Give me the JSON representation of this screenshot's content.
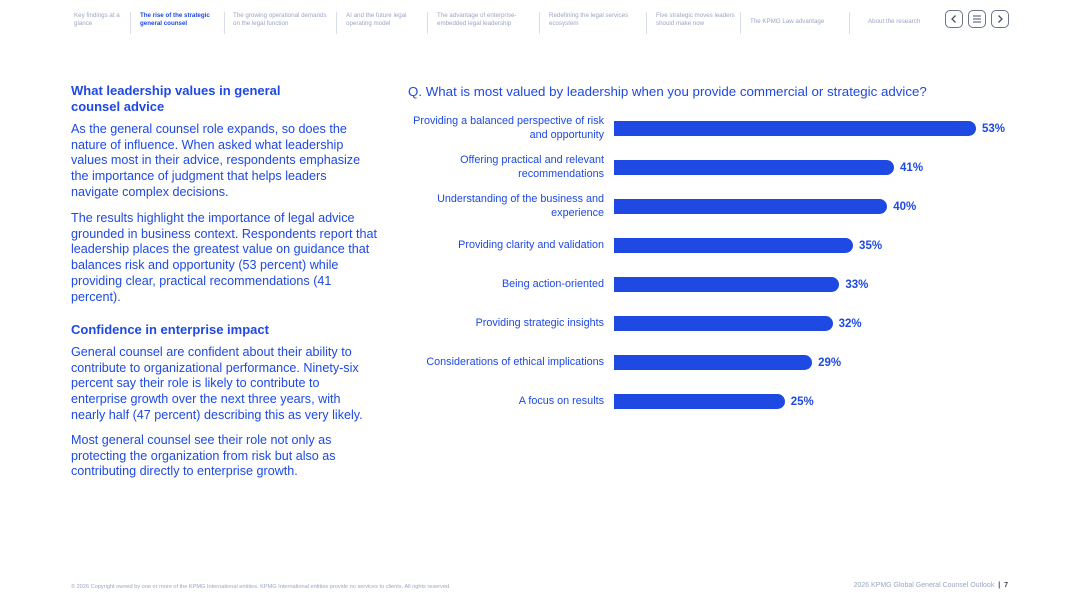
{
  "nav": {
    "items": [
      "Key findings at a glance",
      "The rise of the strategic general counsel",
      "The growing operational demands on the legal function",
      "AI and the future legal operating model",
      "The advantage of enterprise-embedded legal leadership",
      "Redefining the legal services ecosystem",
      "Five strategic moves leaders should make now",
      "The KPMG Law advantage",
      "About the research"
    ],
    "active_index": 1,
    "prev_icon": "chevron-left-icon",
    "menu_icon": "menu-icon",
    "next_icon": "chevron-right-icon"
  },
  "left": {
    "heading1": "What leadership values in general counsel advice",
    "para1": "As the general counsel role expands, so does the nature of influence. When asked what leadership values most in their advice, respondents emphasize the importance of judgment that helps leaders navigate complex decisions.",
    "para2": "The results highlight the importance of legal advice grounded in business context. Respondents report that leadership places the greatest value on guidance that balances risk and opportunity (53 percent) while providing clear, practical recommendations (41 percent).",
    "heading2": "Confidence in enterprise impact",
    "para3": "General counsel are confident about their ability to contribute to organizational performance. Ninety-six percent say their role is likely to contribute to enterprise growth over the next three years, with nearly half (47 percent) describing this as very likely.",
    "para4": "Most general counsel see their role not only as protecting the organization from risk but also as contributing directly to enterprise growth."
  },
  "chart_data": {
    "type": "bar",
    "orientation": "horizontal",
    "title": "Q. What is most valued by leadership when you provide commercial or strategic advice?",
    "categories": [
      "Providing a balanced perspective of risk and opportunity",
      "Offering practical and relevant recommendations",
      "Understanding of the business and experience",
      "Providing clarity and validation",
      "Being action-oriented",
      "Providing strategic insights",
      "Considerations of ethical implications",
      "A focus on results"
    ],
    "values": [
      53,
      41,
      40,
      35,
      33,
      32,
      29,
      25
    ],
    "value_labels": [
      "53%",
      "41%",
      "40%",
      "35%",
      "33%",
      "32%",
      "29%",
      "25%"
    ],
    "unit": "%",
    "bar_color": "#1e49e2",
    "grid": false,
    "legend": "none"
  },
  "footer": {
    "copyright": "© 2026 Copyright owned by one or more of the KPMG International entities. KPMG International entities provide no services to clients. All rights reserved.",
    "publication": "2026 KPMG Global General Counsel Outlook",
    "page_number": "7"
  }
}
